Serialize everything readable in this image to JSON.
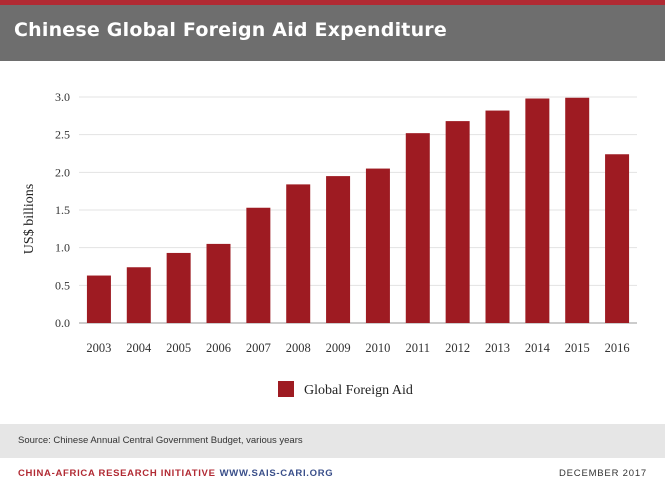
{
  "header": {
    "title": "Chinese Global Foreign Aid Expenditure"
  },
  "chart_data": {
    "type": "bar",
    "title": "Chinese Global Foreign Aid Expenditure",
    "xlabel": "",
    "ylabel": "US$ billions",
    "ylim": [
      0,
      3.0
    ],
    "yticks": [
      "0.0",
      "0.5",
      "1.0",
      "1.5",
      "2.0",
      "2.5",
      "3.0"
    ],
    "categories": [
      "2003",
      "2004",
      "2005",
      "2006",
      "2007",
      "2008",
      "2009",
      "2010",
      "2011",
      "2012",
      "2013",
      "2014",
      "2015",
      "2016"
    ],
    "series": [
      {
        "name": "Global Foreign Aid",
        "values": [
          0.63,
          0.74,
          0.93,
          1.05,
          1.53,
          1.84,
          1.95,
          2.05,
          2.52,
          2.68,
          2.82,
          2.98,
          2.99,
          2.24
        ]
      }
    ],
    "grid": true,
    "legend_position": "bottom-center",
    "bar_color": "#9e1b22"
  },
  "source": {
    "text": "Source: Chinese Annual Central Government Budget, various years"
  },
  "footer": {
    "org": "CHINA-AFRICA RESEARCH INITIATIVE",
    "url": "WWW.SAIS-CARI.ORG",
    "date": "DECEMBER 2017"
  }
}
